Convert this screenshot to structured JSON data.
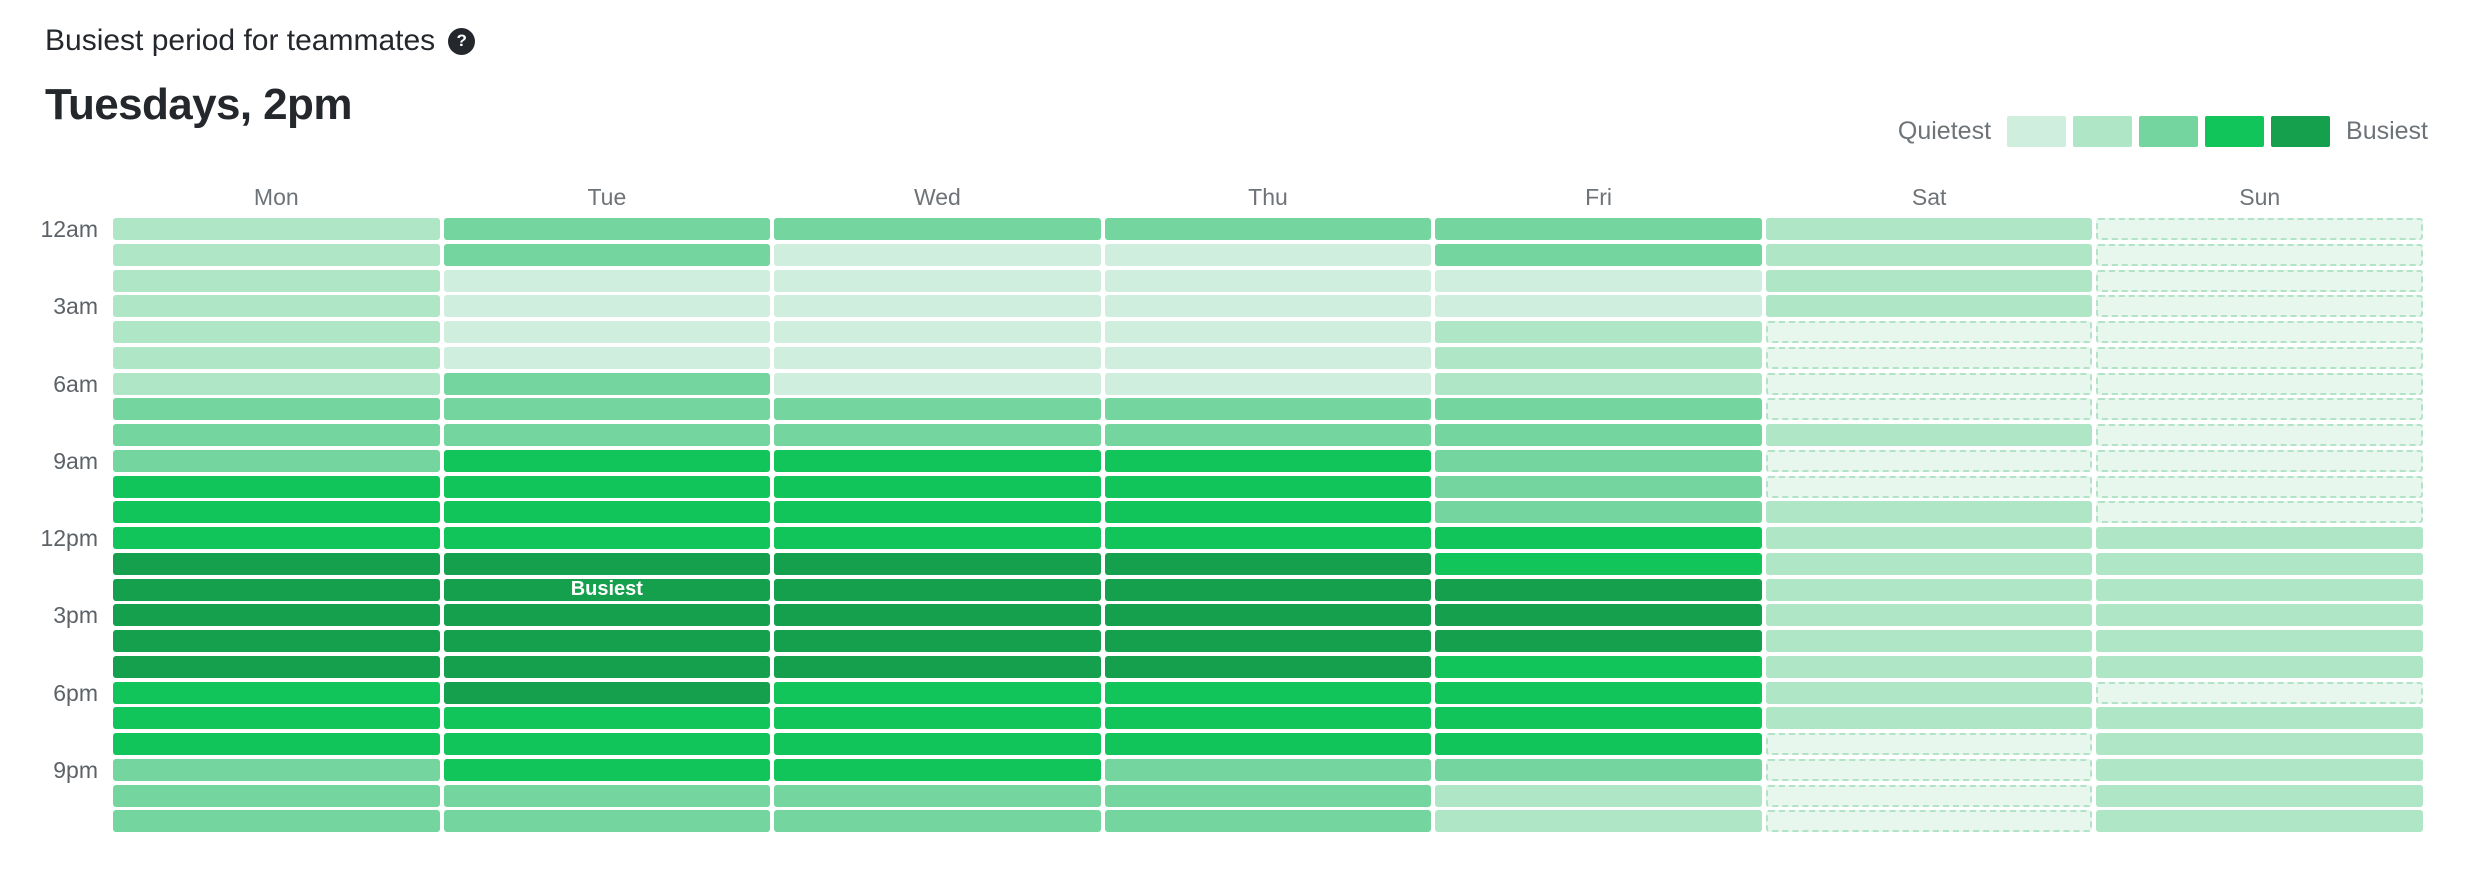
{
  "header": {
    "title": "Busiest period for teammates",
    "help_icon": "?",
    "subtitle": "Tuesdays, 2pm"
  },
  "legend": {
    "min_label": "Quietest",
    "max_label": "Busiest",
    "levels": [
      "#cfeedd",
      "#aee6c6",
      "#75d59f",
      "#12c55a",
      "#14a04d"
    ]
  },
  "chart_data": {
    "type": "heatmap",
    "title": "Busiest period for teammates",
    "subtitle": "Tuesdays, 2pm",
    "columns": [
      "Mon",
      "Tue",
      "Wed",
      "Thu",
      "Fri",
      "Sat",
      "Sun"
    ],
    "rows": [
      "12am",
      "1am",
      "2am",
      "3am",
      "4am",
      "5am",
      "6am",
      "7am",
      "8am",
      "9am",
      "10am",
      "11am",
      "12pm",
      "1pm",
      "2pm",
      "3pm",
      "4pm",
      "5pm",
      "6pm",
      "7pm",
      "8pm",
      "9pm",
      "10pm",
      "11pm"
    ],
    "row_axis_labels": [
      "12am",
      "3am",
      "6am",
      "9am",
      "12pm",
      "3pm",
      "6pm",
      "9pm"
    ],
    "value_scale": "0 = quietest/no activity (dashed outline), 5 = busiest",
    "level_colors": {
      "0": "#e7f7ee",
      "1": "#cfeedd",
      "2": "#aee6c6",
      "3": "#75d59f",
      "4": "#12c55a",
      "5": "#14a04d"
    },
    "series": [
      {
        "name": "Mon",
        "values": [
          2,
          2,
          2,
          2,
          2,
          2,
          2,
          3,
          3,
          3,
          4,
          4,
          4,
          5,
          5,
          5,
          5,
          5,
          4,
          4,
          4,
          3,
          3,
          3
        ]
      },
      {
        "name": "Tue",
        "values": [
          3,
          3,
          1,
          1,
          1,
          1,
          3,
          3,
          3,
          4,
          4,
          4,
          4,
          5,
          5,
          5,
          5,
          5,
          5,
          4,
          4,
          4,
          3,
          3
        ]
      },
      {
        "name": "Wed",
        "values": [
          3,
          1,
          1,
          1,
          1,
          1,
          1,
          3,
          3,
          4,
          4,
          4,
          4,
          5,
          5,
          5,
          5,
          5,
          4,
          4,
          4,
          4,
          3,
          3
        ]
      },
      {
        "name": "Thu",
        "values": [
          3,
          1,
          1,
          1,
          1,
          1,
          1,
          3,
          3,
          4,
          4,
          4,
          4,
          5,
          5,
          5,
          5,
          5,
          4,
          4,
          4,
          3,
          3,
          3
        ]
      },
      {
        "name": "Fri",
        "values": [
          3,
          3,
          1,
          1,
          2,
          2,
          2,
          3,
          3,
          3,
          3,
          3,
          4,
          4,
          5,
          5,
          5,
          4,
          4,
          4,
          4,
          3,
          2,
          2
        ]
      },
      {
        "name": "Sat",
        "values": [
          2,
          2,
          2,
          2,
          0,
          0,
          0,
          0,
          2,
          0,
          0,
          2,
          2,
          2,
          2,
          2,
          2,
          2,
          2,
          2,
          0,
          0,
          0,
          0
        ]
      },
      {
        "name": "Sun",
        "values": [
          0,
          0,
          0,
          0,
          0,
          0,
          0,
          0,
          0,
          0,
          0,
          0,
          2,
          2,
          2,
          2,
          2,
          2,
          0,
          2,
          2,
          2,
          2,
          2
        ]
      }
    ],
    "busiest_cell": {
      "day": "Tue",
      "hour": "2pm",
      "label": "Busiest"
    },
    "legend_position": "top-right",
    "grid": false
  }
}
